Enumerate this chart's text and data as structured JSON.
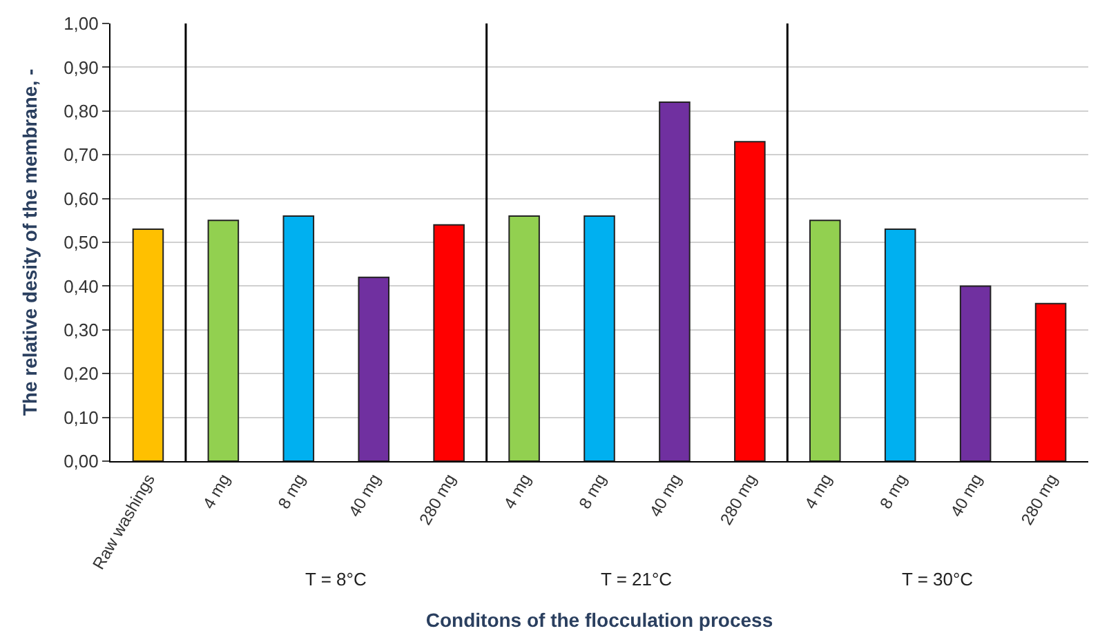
{
  "chart_data": {
    "type": "bar",
    "xlabel": "Conditons of the flocculation process",
    "ylabel": "The relative desity of the membrane, -",
    "categories": [
      "Raw washings",
      "4 mg",
      "8 mg",
      "40 mg",
      "280 mg",
      "4 mg",
      "8 mg",
      "40 mg",
      "280 mg",
      "4 mg",
      "8 mg",
      "40 mg",
      "280 mg"
    ],
    "values": [
      0.53,
      0.55,
      0.56,
      0.42,
      0.54,
      0.56,
      0.56,
      0.82,
      0.73,
      0.55,
      0.53,
      0.4,
      0.36
    ],
    "colors": [
      "#ffc000",
      "#92d050",
      "#00b0f0",
      "#7030a0",
      "#ff0000",
      "#92d050",
      "#00b0f0",
      "#7030a0",
      "#ff0000",
      "#92d050",
      "#00b0f0",
      "#7030a0",
      "#ff0000"
    ],
    "annotations": [
      "T = 8°C",
      "T = 21°C",
      "T = 30°C"
    ],
    "ylim": [
      0,
      1
    ],
    "yticks": [
      {
        "value": 0,
        "label": "0,00"
      },
      {
        "value": 0.1,
        "label": "0,10"
      },
      {
        "value": 0.2,
        "label": "0,20"
      },
      {
        "value": 0.3,
        "label": "0,30"
      },
      {
        "value": 0.4,
        "label": "0,40"
      },
      {
        "value": 0.5,
        "label": "0,50"
      },
      {
        "value": 0.6,
        "label": "0,60"
      },
      {
        "value": 0.7,
        "label": "0,70"
      },
      {
        "value": 0.8,
        "label": "0,80"
      },
      {
        "value": 0.9,
        "label": "0,90"
      },
      {
        "value": 1,
        "label": "1,00"
      }
    ],
    "grid": "y"
  }
}
